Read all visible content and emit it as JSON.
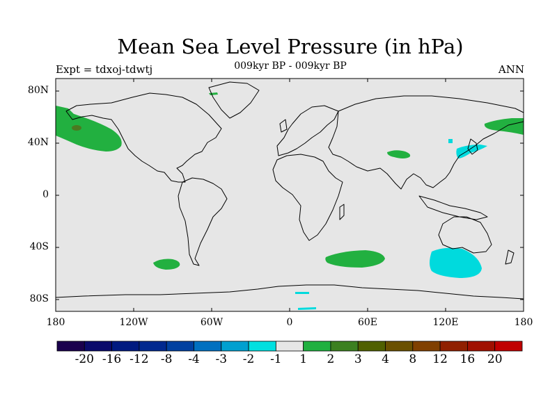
{
  "title": "Mean Sea Level Pressure (in hPa)",
  "subtitle": "009kyr BP - 009kyr BP",
  "left_label": "Expt = tdxoj-tdwtj",
  "right_label": "ANN",
  "y_axis_labels": [
    "80N",
    "40N",
    "0",
    "40S",
    "80S"
  ],
  "x_axis_labels": [
    "180",
    "120W",
    "60W",
    "0",
    "60E",
    "120E",
    "180"
  ],
  "colorbar": {
    "colors": [
      "#1a004d",
      "#0a0a6b",
      "#001a80",
      "#00288f",
      "#0040a0",
      "#0070c0",
      "#00a0d0",
      "#00e0e0",
      "#e6e6e6",
      "#20b040",
      "#3c8020",
      "#506000",
      "#6a5000",
      "#804000",
      "#902000",
      "#a01000",
      "#c00000"
    ],
    "labels": [
      "-20",
      "-16",
      "-12",
      "-8",
      "-4",
      "-3",
      "-2",
      "-1",
      "1",
      "2",
      "3",
      "4",
      "8",
      "12",
      "16",
      "20"
    ]
  },
  "map": {
    "background_color": "#e6e6e6",
    "positive_color": "#22b040",
    "negative_color": "#00dadd",
    "dark_patch_color": "#4a7a20"
  }
}
